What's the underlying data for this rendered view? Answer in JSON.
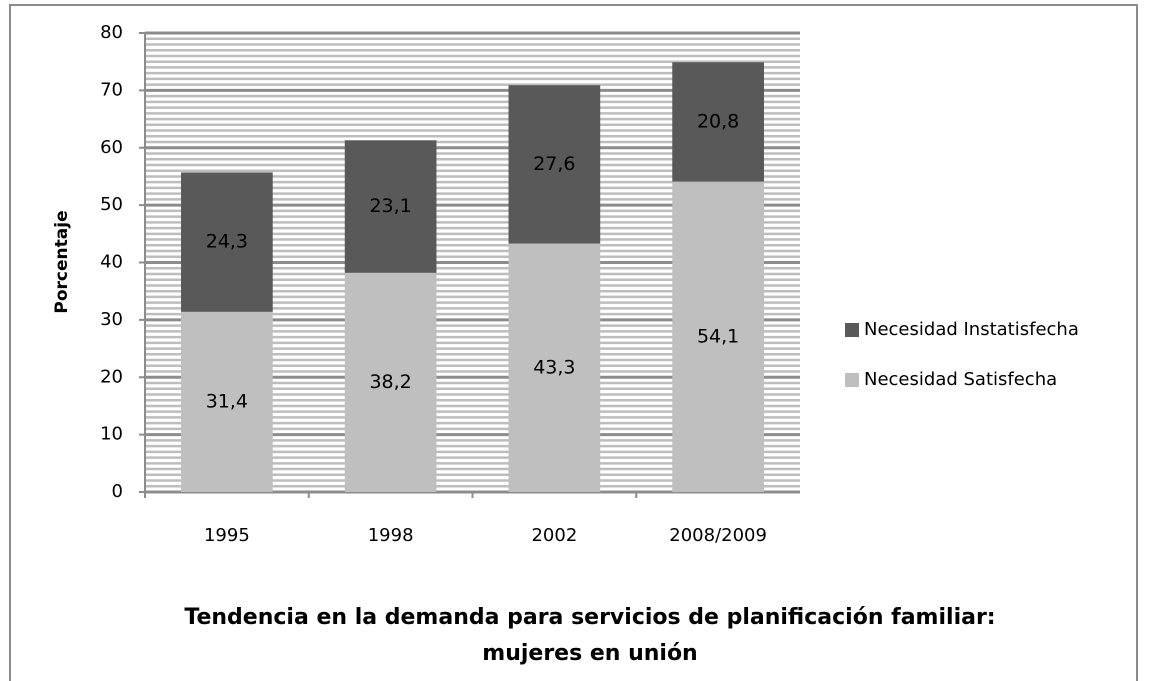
{
  "chart_data": {
    "type": "stacked_bar",
    "title": [
      "Tendencia en la demanda para servicios de planificación familiar:",
      "mujeres en unión"
    ],
    "ylabel": "Porcentaje",
    "categories": [
      "1995",
      "1998",
      "2002",
      "2008/2009"
    ],
    "series": [
      {
        "name": "Necesidad Satisfecha",
        "color": "#bfbfbf",
        "values": [
          31.4,
          38.2,
          43.3,
          54.1
        ],
        "value_labels": [
          "31,4",
          "38,2",
          "43,3",
          "54,1"
        ]
      },
      {
        "name": "Necesidad Instatisfecha",
        "color": "#595959",
        "values": [
          24.3,
          23.1,
          27.6,
          20.8
        ],
        "value_labels": [
          "24,3",
          "23,1",
          "27,6",
          "20,8"
        ]
      }
    ],
    "ylim": [
      0,
      80
    ],
    "yticks": [
      0,
      10,
      20,
      30,
      40,
      50,
      60,
      70,
      80
    ],
    "grid": true,
    "minor_grid": true,
    "legend": "right"
  }
}
